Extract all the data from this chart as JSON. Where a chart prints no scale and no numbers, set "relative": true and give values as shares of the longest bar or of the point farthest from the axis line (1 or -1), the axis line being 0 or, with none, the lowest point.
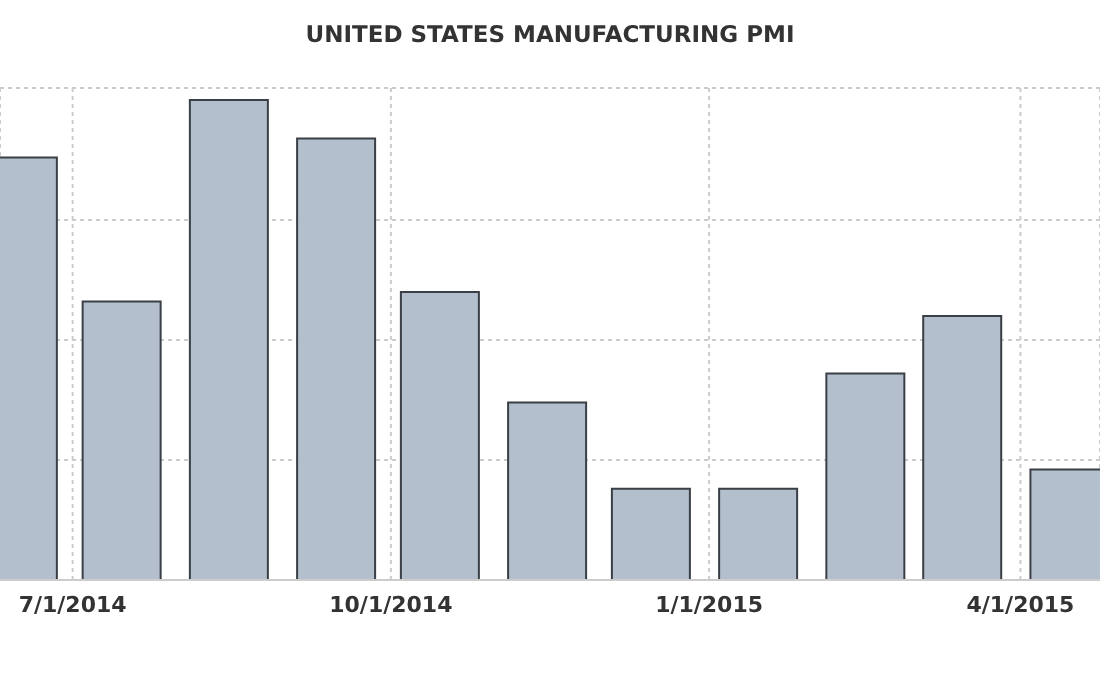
{
  "chart_data": {
    "type": "bar",
    "title": "UNITED STATES MANUFACTURING PMI",
    "relative": true,
    "x": [
      "2014-06-15",
      "2014-07-15",
      "2014-08-15",
      "2014-09-15",
      "2014-10-15",
      "2014-11-15",
      "2014-12-15",
      "2015-01-15",
      "2015-02-15",
      "2015-03-15",
      "2015-04-15"
    ],
    "values": [
      0.88,
      0.58,
      1,
      0.92,
      0.6,
      0.37,
      0.19,
      0.19,
      0.43,
      0.55,
      0.23
    ],
    "color": "#b3bfcd",
    "xlim": [
      "2014-06-10",
      "2015-04-24"
    ],
    "xticks": [
      {
        "value": "2014-07-01",
        "label": "7/1/2014"
      },
      {
        "value": "2014-10-01",
        "label": "10/1/2014"
      },
      {
        "value": "2015-01-01",
        "label": "1/1/2015"
      },
      {
        "value": "2015-04-01",
        "label": "4/1/2015"
      }
    ],
    "grid": true
  }
}
